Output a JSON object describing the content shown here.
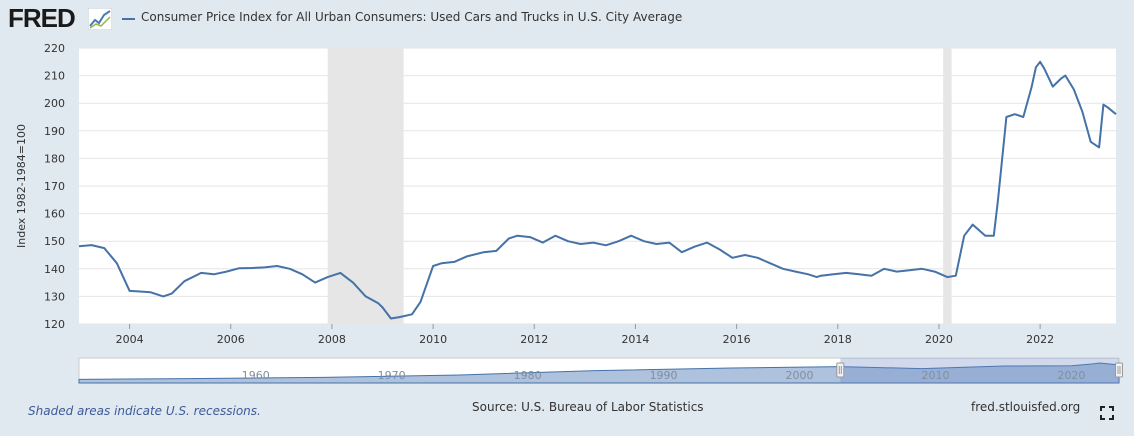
{
  "header": {
    "logo_text": "FRED",
    "logo_icon": "line-chart-icon"
  },
  "footer": {
    "recession_note": "Shaded areas indicate U.S. recessions.",
    "source": "Source: U.S. Bureau of Labor Statistics",
    "link": "fred.stlouisfed.org",
    "fullscreen_icon": "fullscreen-icon"
  },
  "colors": {
    "background": "#e1e9f0",
    "plot_background": "#ffffff",
    "series": "#4572a7",
    "recession": "#e6e6e6",
    "navigator_fill": "#8ba8cf"
  },
  "chart_data": {
    "type": "line",
    "title": "",
    "xlabel": "",
    "ylabel": "Index 1982-1984=100",
    "ylim": [
      120,
      220
    ],
    "yticks": [
      120,
      130,
      140,
      150,
      160,
      170,
      180,
      190,
      200,
      210,
      220
    ],
    "xlim": [
      "2003-01",
      "2023-07"
    ],
    "xticks": [
      "2004",
      "2006",
      "2008",
      "2010",
      "2012",
      "2014",
      "2016",
      "2018",
      "2020",
      "2022"
    ],
    "grid": true,
    "legend_position": "top-left",
    "recessions": [
      [
        "2007-12",
        "2009-06"
      ],
      [
        "2020-02",
        "2020-04"
      ]
    ],
    "series": [
      {
        "name": "Consumer Price Index for All Urban Consumers: Used Cars and Trucks in U.S. City Average",
        "x": [
          "2003-01",
          "2003-04",
          "2003-07",
          "2003-10",
          "2004-01",
          "2004-03",
          "2004-06",
          "2004-09",
          "2004-11",
          "2005-02",
          "2005-06",
          "2005-09",
          "2005-12",
          "2006-03",
          "2006-06",
          "2006-09",
          "2006-12",
          "2007-03",
          "2007-06",
          "2007-09",
          "2007-12",
          "2008-03",
          "2008-06",
          "2008-09",
          "2008-12",
          "2009-01",
          "2009-03",
          "2009-05",
          "2009-08",
          "2009-10",
          "2010-01",
          "2010-03",
          "2010-06",
          "2010-09",
          "2011-01",
          "2011-04",
          "2011-07",
          "2011-09",
          "2011-12",
          "2012-03",
          "2012-06",
          "2012-09",
          "2012-12",
          "2013-03",
          "2013-06",
          "2013-09",
          "2013-12",
          "2014-03",
          "2014-06",
          "2014-09",
          "2014-12",
          "2015-03",
          "2015-06",
          "2015-09",
          "2015-12",
          "2016-03",
          "2016-06",
          "2016-09",
          "2016-12",
          "2017-03",
          "2017-06",
          "2017-08",
          "2017-09",
          "2017-12",
          "2018-03",
          "2018-06",
          "2018-09",
          "2018-12",
          "2019-03",
          "2019-06",
          "2019-09",
          "2019-12",
          "2020-03",
          "2020-05",
          "2020-07",
          "2020-09",
          "2020-12",
          "2021-02",
          "2021-03",
          "2021-05",
          "2021-07",
          "2021-09",
          "2021-11",
          "2021-12",
          "2022-01",
          "2022-02",
          "2022-04",
          "2022-06",
          "2022-07",
          "2022-09",
          "2022-11",
          "2023-01",
          "2023-03",
          "2023-04",
          "2023-05",
          "2023-07"
        ],
        "values": [
          148.2,
          148.6,
          147.5,
          142.0,
          132.0,
          131.8,
          131.5,
          130.0,
          131.0,
          135.5,
          138.5,
          138.0,
          139.0,
          140.2,
          140.3,
          140.5,
          141.0,
          140.0,
          138.0,
          135.0,
          137.0,
          138.5,
          135.0,
          130.0,
          127.5,
          126.0,
          122.0,
          122.5,
          123.5,
          128.0,
          141.0,
          142.0,
          142.5,
          144.5,
          146.0,
          146.5,
          151.0,
          152.0,
          151.5,
          149.5,
          152.0,
          150.0,
          149.0,
          149.5,
          148.5,
          150.0,
          152.0,
          150.0,
          149.0,
          149.5,
          146.0,
          148.0,
          149.5,
          147.0,
          144.0,
          145.0,
          144.0,
          142.0,
          140.0,
          139.0,
          138.0,
          137.0,
          137.5,
          138.0,
          138.5,
          138.0,
          137.5,
          140.0,
          139.0,
          139.5,
          140.0,
          139.0,
          137.0,
          137.5,
          152.0,
          156.0,
          152.0,
          152.0,
          165.0,
          195.0,
          196.0,
          195.0,
          206.0,
          213.0,
          215.0,
          212.5,
          206.0,
          209.0,
          210.0,
          205.0,
          197.0,
          186.0,
          184.0,
          199.5,
          198.5,
          196.0
        ]
      }
    ],
    "navigator": {
      "xticks": [
        "1960",
        "1970",
        "1980",
        "1990",
        "2000",
        "2010",
        "2020"
      ],
      "selected_range": [
        "2003-01",
        "2023-07"
      ]
    }
  }
}
